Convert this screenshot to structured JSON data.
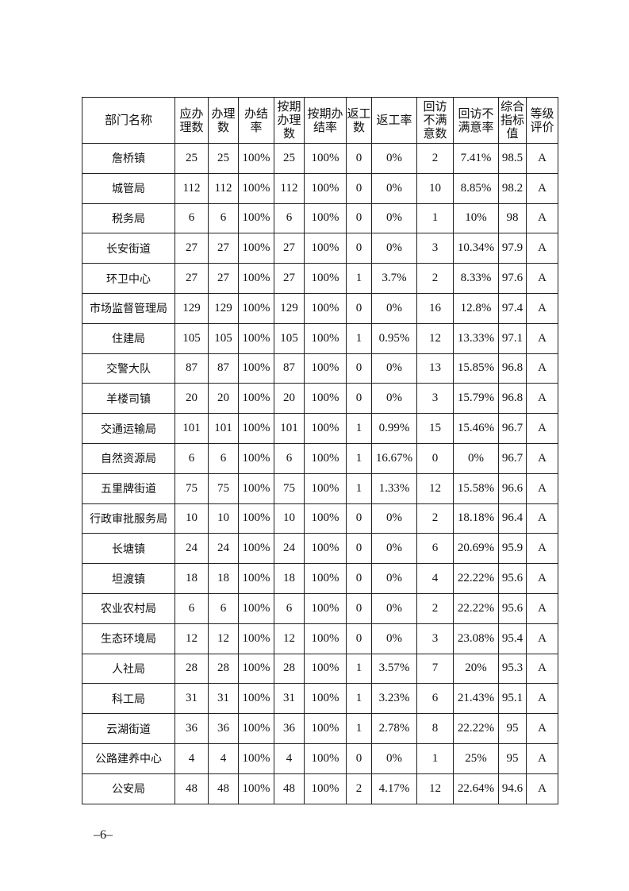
{
  "table": {
    "headers": [
      "部门名称",
      "应办理数",
      "办理数",
      "办结率",
      "按期办理数",
      "按期办结率",
      "返工数",
      "返工率",
      "回访不满意数",
      "回访不满意率",
      "综合指标值",
      "等级评价"
    ],
    "rows": [
      [
        "詹桥镇",
        "25",
        "25",
        "100%",
        "25",
        "100%",
        "0",
        "0%",
        "2",
        "7.41%",
        "98.5",
        "A"
      ],
      [
        "城管局",
        "112",
        "112",
        "100%",
        "112",
        "100%",
        "0",
        "0%",
        "10",
        "8.85%",
        "98.2",
        "A"
      ],
      [
        "税务局",
        "6",
        "6",
        "100%",
        "6",
        "100%",
        "0",
        "0%",
        "1",
        "10%",
        "98",
        "A"
      ],
      [
        "长安街道",
        "27",
        "27",
        "100%",
        "27",
        "100%",
        "0",
        "0%",
        "3",
        "10.34%",
        "97.9",
        "A"
      ],
      [
        "环卫中心",
        "27",
        "27",
        "100%",
        "27",
        "100%",
        "1",
        "3.7%",
        "2",
        "8.33%",
        "97.6",
        "A"
      ],
      [
        "市场监督管理局",
        "129",
        "129",
        "100%",
        "129",
        "100%",
        "0",
        "0%",
        "16",
        "12.8%",
        "97.4",
        "A"
      ],
      [
        "住建局",
        "105",
        "105",
        "100%",
        "105",
        "100%",
        "1",
        "0.95%",
        "12",
        "13.33%",
        "97.1",
        "A"
      ],
      [
        "交警大队",
        "87",
        "87",
        "100%",
        "87",
        "100%",
        "0",
        "0%",
        "13",
        "15.85%",
        "96.8",
        "A"
      ],
      [
        "羊楼司镇",
        "20",
        "20",
        "100%",
        "20",
        "100%",
        "0",
        "0%",
        "3",
        "15.79%",
        "96.8",
        "A"
      ],
      [
        "交通运输局",
        "101",
        "101",
        "100%",
        "101",
        "100%",
        "1",
        "0.99%",
        "15",
        "15.46%",
        "96.7",
        "A"
      ],
      [
        "自然资源局",
        "6",
        "6",
        "100%",
        "6",
        "100%",
        "1",
        "16.67%",
        "0",
        "0%",
        "96.7",
        "A"
      ],
      [
        "五里牌街道",
        "75",
        "75",
        "100%",
        "75",
        "100%",
        "1",
        "1.33%",
        "12",
        "15.58%",
        "96.6",
        "A"
      ],
      [
        "行政审批服务局",
        "10",
        "10",
        "100%",
        "10",
        "100%",
        "0",
        "0%",
        "2",
        "18.18%",
        "96.4",
        "A"
      ],
      [
        "长塘镇",
        "24",
        "24",
        "100%",
        "24",
        "100%",
        "0",
        "0%",
        "6",
        "20.69%",
        "95.9",
        "A"
      ],
      [
        "坦渡镇",
        "18",
        "18",
        "100%",
        "18",
        "100%",
        "0",
        "0%",
        "4",
        "22.22%",
        "95.6",
        "A"
      ],
      [
        "农业农村局",
        "6",
        "6",
        "100%",
        "6",
        "100%",
        "0",
        "0%",
        "2",
        "22.22%",
        "95.6",
        "A"
      ],
      [
        "生态环境局",
        "12",
        "12",
        "100%",
        "12",
        "100%",
        "0",
        "0%",
        "3",
        "23.08%",
        "95.4",
        "A"
      ],
      [
        "人社局",
        "28",
        "28",
        "100%",
        "28",
        "100%",
        "1",
        "3.57%",
        "7",
        "20%",
        "95.3",
        "A"
      ],
      [
        "科工局",
        "31",
        "31",
        "100%",
        "31",
        "100%",
        "1",
        "3.23%",
        "6",
        "21.43%",
        "95.1",
        "A"
      ],
      [
        "云湖街道",
        "36",
        "36",
        "100%",
        "36",
        "100%",
        "1",
        "2.78%",
        "8",
        "22.22%",
        "95",
        "A"
      ],
      [
        "公路建养中心",
        "4",
        "4",
        "100%",
        "4",
        "100%",
        "0",
        "0%",
        "1",
        "25%",
        "95",
        "A"
      ],
      [
        "公安局",
        "48",
        "48",
        "100%",
        "48",
        "100%",
        "2",
        "4.17%",
        "12",
        "22.64%",
        "94.6",
        "A"
      ]
    ]
  },
  "page_number": "–6–"
}
